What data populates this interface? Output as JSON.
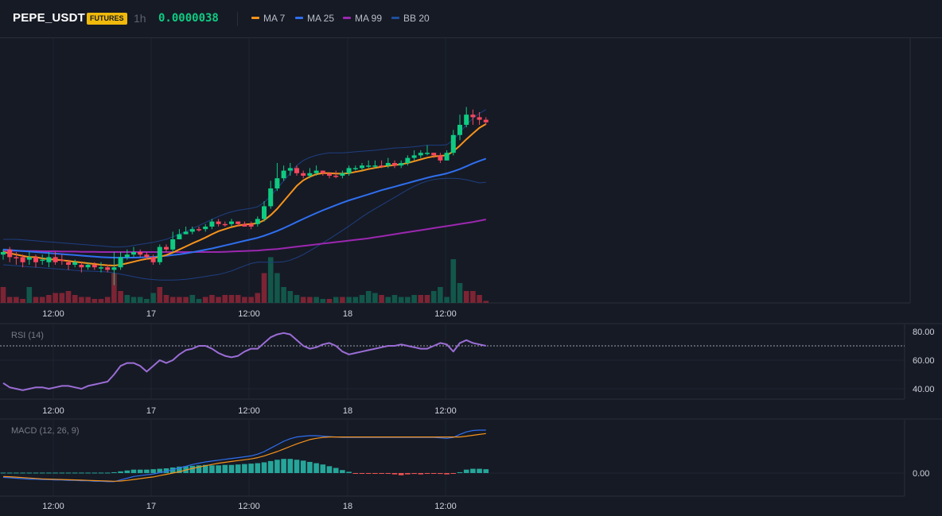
{
  "header": {
    "symbol": "PEPE_USDT",
    "badge": "FUTURES",
    "timeframe": "1h",
    "price": "0.0000038"
  },
  "legend": [
    {
      "label": "MA 7",
      "color": "#f7931a"
    },
    {
      "label": "MA 25",
      "color": "#2f6fef"
    },
    {
      "label": "MA 99",
      "color": "#9c27b0"
    },
    {
      "label": "BB 20",
      "color": "#1e4fa0"
    }
  ],
  "colors": {
    "up": "#0ecb81",
    "down": "#f6465d",
    "up_volume": "#12574a",
    "down_volume": "#7c2434",
    "rsi": "#9b6dd6",
    "macd": "#2f6fef",
    "signal": "#f7931a",
    "hist_up": "#26a69a",
    "hist_down": "#ef5350"
  },
  "time_axis": [
    "12:00",
    "17",
    "12:00",
    "18",
    "12:00"
  ],
  "chart_data": [
    {
      "type": "candlestick",
      "title": "PEPE_USDT 1h",
      "indicators": [
        "MA 7",
        "MA 25",
        "MA 99",
        "BB 20"
      ],
      "x_ticks": [
        "12:00",
        "17",
        "12:00",
        "18",
        "12:00"
      ],
      "candles": [
        [
          49,
          50,
          47,
          51,
          "u"
        ],
        [
          51,
          48,
          46,
          52,
          "d"
        ],
        [
          48,
          48,
          45,
          50,
          "d"
        ],
        [
          48,
          46,
          44,
          49,
          "d"
        ],
        [
          47,
          48,
          45,
          50,
          "u"
        ],
        [
          48,
          46,
          44,
          49,
          "d"
        ],
        [
          47,
          47,
          45,
          49,
          "u"
        ],
        [
          46,
          48,
          44,
          50,
          "u"
        ],
        [
          48,
          46,
          45,
          50,
          "d"
        ],
        [
          47,
          47,
          45,
          49,
          "d"
        ],
        [
          46,
          45,
          43,
          47,
          "d"
        ],
        [
          45,
          46,
          44,
          47,
          "u"
        ],
        [
          45,
          44,
          42,
          46,
          "d"
        ],
        [
          44,
          45,
          43,
          46,
          "u"
        ],
        [
          45,
          44,
          43,
          46,
          "d"
        ],
        [
          44,
          44,
          42,
          46,
          "u"
        ],
        [
          44,
          43,
          42,
          45,
          "d"
        ],
        [
          43,
          44,
          37,
          50,
          "u"
        ],
        [
          44,
          48,
          43,
          50,
          "u"
        ],
        [
          48,
          49,
          47,
          51,
          "u"
        ],
        [
          49,
          50,
          48,
          52,
          "u"
        ],
        [
          50,
          49,
          48,
          51,
          "d"
        ],
        [
          49,
          48,
          47,
          50,
          "d"
        ],
        [
          48,
          46,
          45,
          49,
          "d"
        ],
        [
          46,
          52,
          45,
          53,
          "u"
        ],
        [
          52,
          51,
          50,
          53,
          "d"
        ],
        [
          51,
          55,
          50,
          58,
          "u"
        ],
        [
          55,
          57,
          55,
          59,
          "u"
        ],
        [
          57,
          58,
          57,
          60,
          "u"
        ],
        [
          58,
          59,
          57,
          60,
          "u"
        ],
        [
          59,
          59,
          58,
          60,
          "d"
        ],
        [
          59,
          60,
          58,
          61,
          "u"
        ],
        [
          60,
          62,
          59,
          63,
          "u"
        ],
        [
          62,
          61,
          60,
          63,
          "d"
        ],
        [
          61,
          61,
          60,
          62,
          "d"
        ],
        [
          61,
          62,
          60,
          63,
          "u"
        ],
        [
          62,
          61,
          60,
          62,
          "d"
        ],
        [
          61,
          60,
          60,
          62,
          "d"
        ],
        [
          60,
          61,
          59,
          62,
          "d"
        ],
        [
          61,
          63,
          60,
          64,
          "u"
        ],
        [
          63,
          68,
          62,
          70,
          "u"
        ],
        [
          68,
          75,
          67,
          78,
          "u"
        ],
        [
          75,
          79,
          74,
          85,
          "u"
        ],
        [
          79,
          82,
          78,
          84,
          "u"
        ],
        [
          82,
          83,
          80,
          85,
          "u"
        ],
        [
          83,
          81,
          80,
          84,
          "d"
        ],
        [
          81,
          80,
          79,
          82,
          "d"
        ],
        [
          80,
          81,
          79,
          83,
          "u"
        ],
        [
          81,
          82,
          80,
          84,
          "u"
        ],
        [
          82,
          81,
          80,
          82,
          "d"
        ],
        [
          81,
          80,
          79,
          81,
          "d"
        ],
        [
          80,
          80,
          79,
          82,
          "d"
        ],
        [
          80,
          81,
          79,
          82,
          "u"
        ],
        [
          81,
          83,
          80,
          84,
          "u"
        ],
        [
          83,
          83,
          82,
          84,
          "u"
        ],
        [
          83,
          84,
          82,
          85,
          "u"
        ],
        [
          84,
          84,
          83,
          86,
          "u"
        ],
        [
          84,
          84,
          83,
          86,
          "u"
        ],
        [
          84,
          84,
          83,
          86,
          "d"
        ],
        [
          84,
          85,
          83,
          87,
          "u"
        ],
        [
          85,
          84,
          83,
          86,
          "d"
        ],
        [
          84,
          85,
          83,
          86,
          "u"
        ],
        [
          85,
          87,
          84,
          88,
          "u"
        ],
        [
          87,
          88,
          86,
          90,
          "u"
        ],
        [
          88,
          89,
          87,
          90,
          "u"
        ],
        [
          89,
          89,
          88,
          92,
          "u"
        ],
        [
          89,
          88,
          87,
          89,
          "d"
        ],
        [
          88,
          86,
          85,
          89,
          "d"
        ],
        [
          86,
          89,
          86,
          90,
          "u"
        ],
        [
          89,
          96,
          88,
          98,
          "u"
        ],
        [
          96,
          100,
          94,
          104,
          "u"
        ],
        [
          100,
          104,
          99,
          107,
          "u"
        ],
        [
          104,
          103,
          100,
          106,
          "d"
        ],
        [
          103,
          102,
          100,
          105,
          "d"
        ],
        [
          102,
          101,
          100,
          103,
          "d"
        ]
      ],
      "ma7": [
        50,
        49.5,
        49,
        48.5,
        48,
        48,
        47.5,
        47.2,
        47,
        46.8,
        46.5,
        46.2,
        45.9,
        45.6,
        45.3,
        45,
        44.8,
        44.7,
        45,
        45.6,
        46.2,
        46.8,
        47.3,
        47.6,
        48.2,
        48.8,
        49.8,
        51,
        52.2,
        53.4,
        54.5,
        55.7,
        57,
        58.2,
        59,
        59.8,
        60.4,
        60.8,
        61,
        61.3,
        62.5,
        64.5,
        67,
        70,
        73,
        76,
        78.2,
        79.6,
        80.6,
        81,
        81,
        80.8,
        80.8,
        81,
        81.5,
        82,
        82.6,
        83.1,
        83.5,
        83.9,
        84.2,
        84.5,
        85,
        85.7,
        86.4,
        87.1,
        87.6,
        87.8,
        88,
        89.6,
        91.8,
        94.3,
        96.6,
        98.8,
        100.3
      ],
      "ma25": [
        51,
        50.8,
        50.6,
        50.4,
        50.2,
        50,
        49.8,
        49.6,
        49.4,
        49.2,
        49,
        48.8,
        48.6,
        48.4,
        48.2,
        48,
        47.9,
        47.8,
        47.8,
        47.8,
        47.8,
        47.9,
        48,
        48.1,
        48.3,
        48.5,
        48.8,
        49.1,
        49.5,
        49.9,
        50.4,
        50.9,
        51.4,
        52,
        52.6,
        53.2,
        53.8,
        54.4,
        55,
        55.6,
        56.4,
        57.3,
        58.3,
        59.4,
        60.6,
        61.8,
        63,
        64.2,
        65.3,
        66.4,
        67.4,
        68.4,
        69.4,
        70.3,
        71.1,
        71.9,
        72.7,
        73.5,
        74.3,
        75,
        75.7,
        76.4,
        77.1,
        77.8,
        78.5,
        79.2,
        79.8,
        80.3,
        80.9,
        81.7,
        82.6,
        83.7,
        84.8,
        85.8,
        86.7
      ],
      "ma99": [
        50.5,
        50.5,
        50.5,
        50.4,
        50.4,
        50.4,
        50.3,
        50.3,
        50.3,
        50.2,
        50.2,
        50.2,
        50.1,
        50.1,
        50.1,
        50,
        50,
        50,
        50,
        50,
        50,
        50,
        50,
        50,
        50,
        50,
        50,
        50,
        50,
        50,
        50,
        50,
        50,
        50,
        50.1,
        50.2,
        50.3,
        50.4,
        50.5,
        50.6,
        50.8,
        51,
        51.2,
        51.5,
        51.8,
        52.1,
        52.4,
        52.7,
        53,
        53.3,
        53.6,
        53.9,
        54.2,
        54.5,
        54.8,
        55.1,
        55.4,
        55.8,
        56.2,
        56.6,
        57,
        57.4,
        57.8,
        58.2,
        58.6,
        59,
        59.4,
        59.8,
        60.2,
        60.6,
        61,
        61.4,
        61.8,
        62.3,
        62.8
      ],
      "bb_upper": [
        55,
        55,
        55,
        54.8,
        54.6,
        54.4,
        54.2,
        54,
        53.8,
        53.6,
        53.4,
        53.2,
        53,
        52.8,
        52.6,
        52.4,
        52.2,
        52,
        52,
        52.2,
        52.6,
        53,
        53.4,
        53.8,
        54.4,
        55,
        56,
        57,
        58,
        59.2,
        60.4,
        61.6,
        62.8,
        64,
        65,
        65.8,
        66.4,
        66.8,
        67.2,
        67.8,
        69.5,
        72,
        75,
        78,
        81,
        84,
        86,
        87.2,
        88,
        88.6,
        89,
        89,
        89,
        89.2,
        89.4,
        89.6,
        89.8,
        90,
        90.3,
        90.6,
        90.9,
        91,
        91.2,
        91.4,
        91.7,
        92,
        92,
        92,
        92.2,
        94,
        97,
        100,
        102.5,
        104.5,
        106
      ],
      "bb_lower": [
        45,
        44.8,
        44.6,
        44.4,
        44.2,
        44,
        43.8,
        43.6,
        43.4,
        43.2,
        43,
        42.8,
        42.6,
        42.5,
        42.4,
        42.3,
        42.2,
        41.8,
        41.3,
        40.8,
        40.3,
        39.8,
        39.4,
        39.2,
        39,
        39,
        39,
        39.1,
        39.3,
        39.6,
        40,
        40.4,
        40.8,
        41.2,
        41.8,
        42.6,
        43.6,
        44.6,
        45.5,
        46,
        46,
        46,
        46,
        46.2,
        46.8,
        47.8,
        49,
        50.5,
        52,
        53.6,
        55.2,
        56.8,
        58.5,
        60.2,
        62,
        63.8,
        65.5,
        67,
        68.5,
        70,
        71.5,
        73,
        74.5,
        75.8,
        77,
        77.9,
        78.5,
        78.8,
        79,
        79,
        78.8,
        78.4,
        77.8,
        77.2,
        77.4
      ],
      "volume": [
        8,
        3,
        3,
        2,
        8,
        3,
        3,
        4,
        5,
        5,
        6,
        4,
        3,
        3,
        2,
        2,
        3,
        15,
        6,
        4,
        3,
        3,
        2,
        5,
        8,
        4,
        3,
        3,
        3,
        4,
        2,
        3,
        4,
        3,
        4,
        4,
        4,
        3,
        3,
        5,
        15,
        23,
        15,
        8,
        6,
        4,
        3,
        3,
        3,
        2,
        2,
        3,
        3,
        3,
        3,
        4,
        6,
        5,
        4,
        3,
        4,
        3,
        3,
        4,
        4,
        4,
        6,
        8,
        3,
        22,
        10,
        6,
        6,
        4,
        1
      ],
      "volume_direction": "ddddudddddddddddddduuuuuddddduudddddddddduuuuudduududuuuuuduuuuudduuuuuddd",
      "rsi": [
        44,
        41,
        40,
        39,
        40,
        41,
        41,
        40,
        41,
        42,
        42,
        41,
        40,
        42,
        43,
        44,
        45,
        50,
        56,
        58,
        58,
        56,
        52,
        56,
        60,
        58,
        60,
        64,
        67,
        68,
        70,
        70,
        68,
        65,
        63,
        62,
        63,
        66,
        68,
        68,
        72,
        76,
        78,
        79,
        78,
        74,
        70,
        68,
        69,
        71,
        72,
        70,
        66,
        64,
        65,
        66,
        67,
        68,
        69,
        70,
        70,
        71,
        70,
        69,
        68,
        68,
        70,
        72,
        71,
        66,
        72,
        74,
        72,
        71,
        70
      ],
      "macd": [
        -1,
        -1.1,
        -1.2,
        -1.3,
        -1.4,
        -1.4,
        -1.5,
        -1.5,
        -1.6,
        -1.6,
        -1.7,
        -1.7,
        -1.8,
        -1.8,
        -1.9,
        -1.9,
        -2,
        -2,
        -1.6,
        -1.2,
        -0.8,
        -0.6,
        -0.4,
        -0.2,
        0.1,
        0.4,
        0.8,
        1.2,
        1.6,
        2,
        2.3,
        2.6,
        2.8,
        3,
        3.2,
        3.4,
        3.6,
        3.8,
        4,
        4.4,
        5,
        5.8,
        6.6,
        7.4,
        8,
        8.4,
        8.6,
        8.7,
        8.7,
        8.6,
        8.5,
        8.4,
        8.3,
        8.3,
        8.3,
        8.3,
        8.3,
        8.3,
        8.3,
        8.3,
        8.3,
        8.3,
        8.3,
        8.3,
        8.3,
        8.3,
        8.3,
        8.2,
        8.1,
        8.3,
        9,
        9.6,
        9.9,
        10,
        10
      ],
      "signal": [
        -0.8,
        -0.85,
        -0.95,
        -1.05,
        -1.15,
        -1.25,
        -1.35,
        -1.4,
        -1.45,
        -1.5,
        -1.55,
        -1.6,
        -1.65,
        -1.7,
        -1.75,
        -1.8,
        -1.85,
        -1.9,
        -1.85,
        -1.7,
        -1.5,
        -1.3,
        -1.1,
        -0.9,
        -0.6,
        -0.3,
        0,
        0.3,
        0.7,
        1.1,
        1.4,
        1.7,
        2,
        2.3,
        2.5,
        2.7,
        2.9,
        3.1,
        3.3,
        3.6,
        4,
        4.5,
        5,
        5.6,
        6.2,
        6.8,
        7.3,
        7.8,
        8.1,
        8.3,
        8.4,
        8.4,
        8.4,
        8.4,
        8.4,
        8.4,
        8.4,
        8.4,
        8.4,
        8.4,
        8.4,
        8.4,
        8.4,
        8.4,
        8.4,
        8.4,
        8.4,
        8.4,
        8.4,
        8.4,
        8.4,
        8.6,
        8.8,
        9,
        9.2
      ],
      "histogram": [
        0.1,
        0.1,
        0.1,
        0.1,
        0.1,
        0.1,
        0.1,
        0.1,
        0.1,
        0.1,
        0.1,
        0.1,
        0.1,
        0.1,
        0.1,
        0.1,
        0.1,
        0.2,
        0.4,
        0.6,
        0.8,
        0.8,
        0.8,
        0.9,
        1,
        1.1,
        1.3,
        1.5,
        1.6,
        1.7,
        1.8,
        1.9,
        1.8,
        1.8,
        1.9,
        1.9,
        2,
        2.1,
        2.2,
        2.3,
        2.5,
        2.8,
        3.1,
        3.3,
        3.3,
        3.1,
        2.9,
        2.6,
        2.3,
        2,
        1.6,
        1.2,
        0.7,
        0.3,
        -0.1,
        -0.1,
        -0.1,
        -0.1,
        -0.1,
        -0.1,
        -0.3,
        -0.5,
        -0.3,
        -0.2,
        -0.3,
        -0.1,
        -0.1,
        -0.2,
        -0.3,
        -0.1,
        0.2,
        0.8,
        1,
        1,
        0.9
      ]
    }
  ],
  "panes": {
    "rsi_label": "RSI (14)",
    "rsi_levels": [
      "80.00",
      "60.00",
      "40.00"
    ],
    "macd_label": "MACD (12, 26, 9)",
    "macd_zero": "0.00"
  }
}
